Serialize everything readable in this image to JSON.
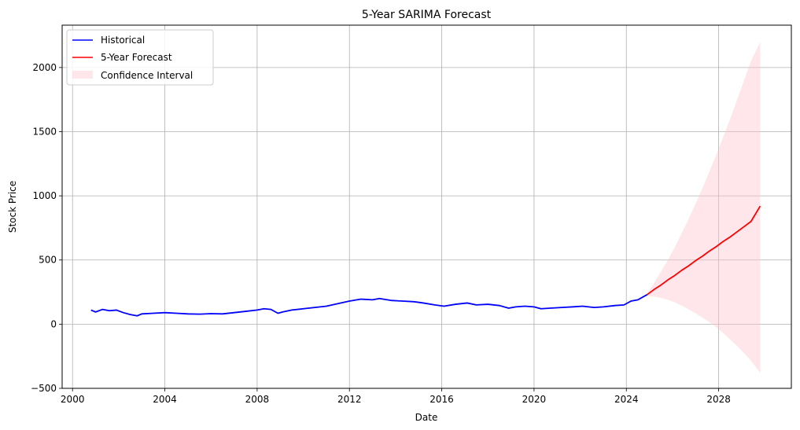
{
  "chart_data": {
    "type": "line",
    "title": "5-Year SARIMA Forecast",
    "xlabel": "Date",
    "ylabel": "Stock Price",
    "xlim": [
      1999.55,
      2031.15
    ],
    "ylim": [
      -500,
      2330
    ],
    "x_ticks": [
      2000,
      2004,
      2008,
      2012,
      2016,
      2020,
      2024,
      2028
    ],
    "x_tick_labels": [
      "2000",
      "2004",
      "2008",
      "2012",
      "2016",
      "2020",
      "2024",
      "2028"
    ],
    "y_ticks": [
      -500,
      0,
      500,
      1000,
      1500,
      2000
    ],
    "y_tick_labels": [
      "−500",
      "0",
      "500",
      "1000",
      "1500",
      "2000"
    ],
    "grid": true,
    "legend_position": "top-left",
    "legend": [
      "Historical",
      "5-Year Forecast",
      "Confidence Interval"
    ],
    "colors": {
      "historical": "#0000ff",
      "forecast": "#ff0000",
      "interval": "#ffc0cb",
      "grid": "#b0b0b0"
    },
    "series": [
      {
        "name": "Historical",
        "x": [
          2000.8,
          2001.0,
          2001.3,
          2001.6,
          2001.9,
          2002.2,
          2002.5,
          2002.8,
          2003.0,
          2003.5,
          2004.0,
          2004.5,
          2005.0,
          2005.5,
          2006.0,
          2006.5,
          2007.0,
          2007.5,
          2008.0,
          2008.3,
          2008.6,
          2008.9,
          2009.1,
          2009.5,
          2010.0,
          2010.5,
          2011.0,
          2011.5,
          2012.0,
          2012.5,
          2013.0,
          2013.3,
          2013.8,
          2014.3,
          2014.8,
          2015.2,
          2015.7,
          2016.1,
          2016.6,
          2017.1,
          2017.5,
          2018.0,
          2018.5,
          2018.9,
          2019.2,
          2019.6,
          2020.0,
          2020.3,
          2020.7,
          2021.2,
          2021.7,
          2022.1,
          2022.6,
          2023.0,
          2023.5,
          2023.9,
          2024.2,
          2024.5,
          2024.9
        ],
        "y": [
          110,
          95,
          115,
          105,
          110,
          90,
          75,
          65,
          80,
          85,
          90,
          85,
          80,
          78,
          82,
          80,
          90,
          100,
          110,
          120,
          115,
          85,
          95,
          110,
          120,
          130,
          140,
          160,
          180,
          195,
          190,
          200,
          185,
          180,
          175,
          165,
          150,
          140,
          155,
          165,
          150,
          155,
          145,
          125,
          135,
          140,
          135,
          120,
          125,
          130,
          135,
          140,
          130,
          135,
          145,
          150,
          180,
          190,
          230
        ]
      },
      {
        "name": "5-Year Forecast",
        "x": [
          2024.9,
          2025.2,
          2025.5,
          2025.8,
          2026.1,
          2026.4,
          2026.7,
          2027.0,
          2027.3,
          2027.6,
          2027.9,
          2028.2,
          2028.5,
          2028.8,
          2029.1,
          2029.4,
          2029.8
        ],
        "y": [
          230,
          270,
          305,
          345,
          380,
          420,
          455,
          495,
          530,
          570,
          605,
          645,
          680,
          720,
          760,
          800,
          920
        ]
      },
      {
        "name": "Confidence Interval",
        "x": [
          2024.9,
          2025.2,
          2025.5,
          2025.8,
          2026.1,
          2026.4,
          2026.7,
          2027.0,
          2027.3,
          2027.6,
          2027.9,
          2028.2,
          2028.5,
          2028.8,
          2029.1,
          2029.4,
          2029.8
        ],
        "upper": [
          240,
          320,
          410,
          500,
          600,
          710,
          820,
          940,
          1060,
          1190,
          1320,
          1460,
          1600,
          1750,
          1900,
          2050,
          2200
        ],
        "lower": [
          220,
          215,
          205,
          190,
          170,
          145,
          115,
          85,
          50,
          15,
          -25,
          -70,
          -120,
          -170,
          -225,
          -285,
          -380
        ]
      }
    ]
  }
}
